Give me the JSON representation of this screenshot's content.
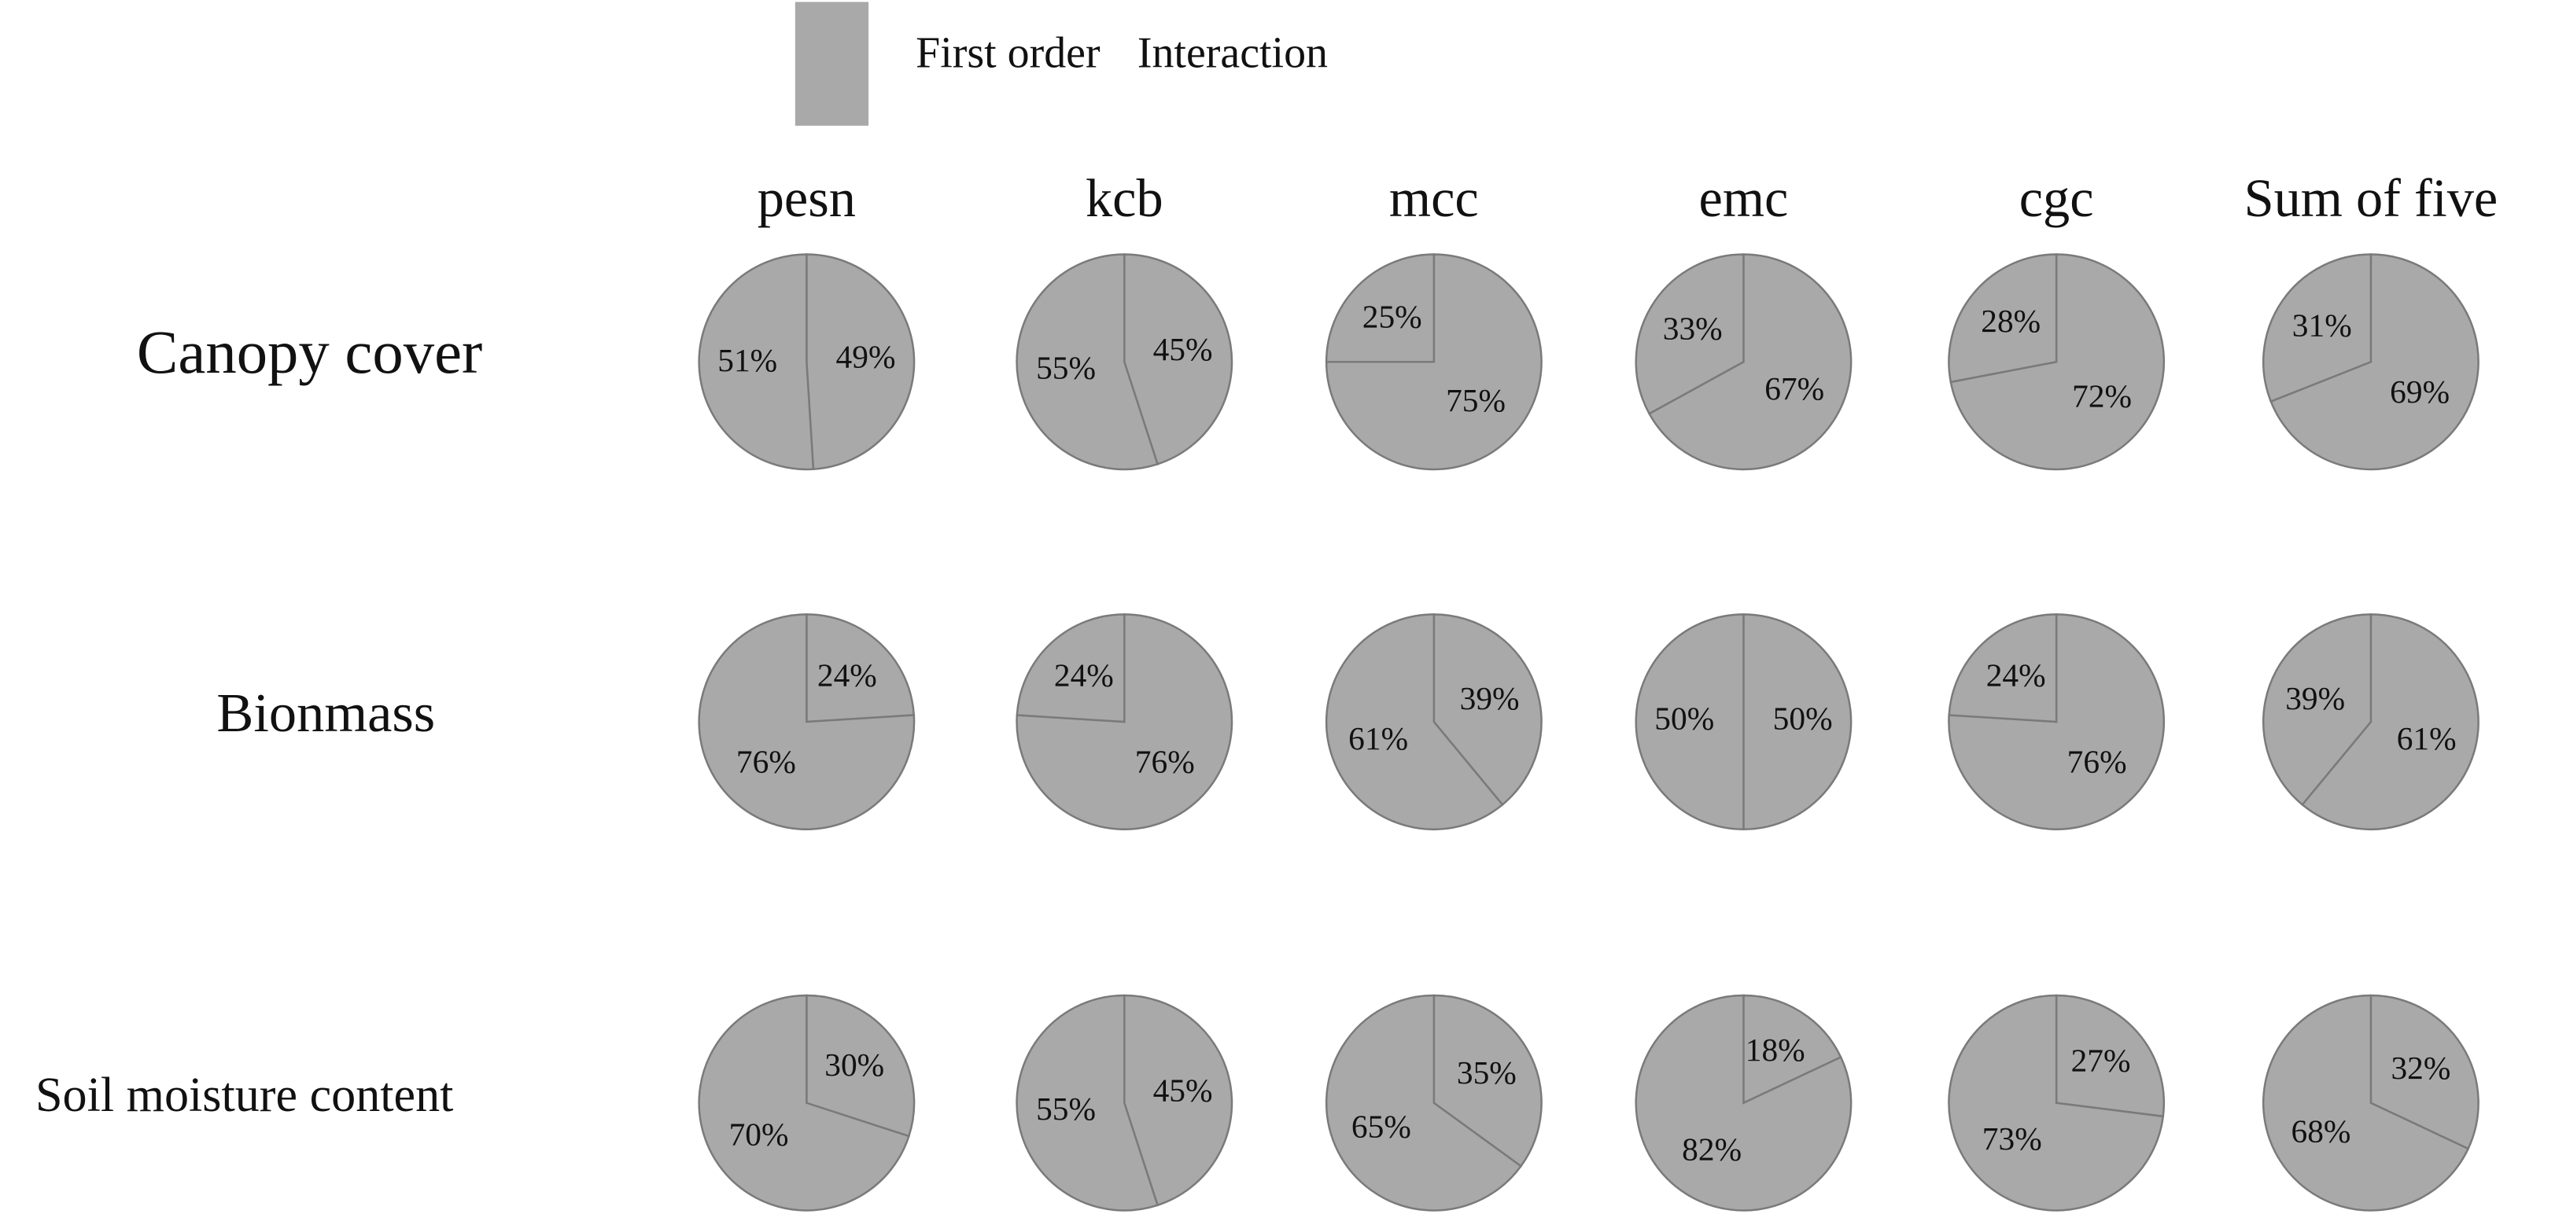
{
  "legend": {
    "labels": [
      "First order",
      "Interaction"
    ],
    "color": "#a9a9a9"
  },
  "columns": [
    "pesn",
    "kcb",
    "mcc",
    "emc",
    "cgc",
    "Sum of five"
  ],
  "rows": [
    "Canopy cover",
    "Bionmass",
    "Soil moisture content"
  ],
  "chart_data": [
    {
      "type": "pie",
      "values": [
        49,
        51
      ],
      "value_labels": [
        "49%",
        "51%"
      ]
    },
    {
      "type": "pie",
      "values": [
        45,
        55
      ],
      "value_labels": [
        "45%",
        "55%"
      ]
    },
    {
      "type": "pie",
      "values": [
        75,
        25
      ],
      "value_labels": [
        "75%",
        "25%"
      ]
    },
    {
      "type": "pie",
      "values": [
        67,
        33
      ],
      "value_labels": [
        "67%",
        "33%"
      ]
    },
    {
      "type": "pie",
      "values": [
        72,
        28
      ],
      "value_labels": [
        "72%",
        "28%"
      ]
    },
    {
      "type": "pie",
      "values": [
        69,
        31
      ],
      "value_labels": [
        "69%",
        "31%"
      ]
    },
    {
      "type": "pie",
      "values": [
        24,
        76
      ],
      "value_labels": [
        "24%",
        "76%"
      ]
    },
    {
      "type": "pie",
      "values": [
        76,
        24
      ],
      "value_labels": [
        "76%",
        "24%"
      ]
    },
    {
      "type": "pie",
      "values": [
        39,
        61
      ],
      "value_labels": [
        "39%",
        "61%"
      ]
    },
    {
      "type": "pie",
      "values": [
        50,
        50
      ],
      "value_labels": [
        "50%",
        "50%"
      ]
    },
    {
      "type": "pie",
      "values": [
        76,
        24
      ],
      "value_labels": [
        "76%",
        "24%"
      ]
    },
    {
      "type": "pie",
      "values": [
        61,
        39
      ],
      "value_labels": [
        "61%",
        "39%"
      ]
    },
    {
      "type": "pie",
      "values": [
        30,
        70
      ],
      "value_labels": [
        "30%",
        "70%"
      ]
    },
    {
      "type": "pie",
      "values": [
        45,
        55
      ],
      "value_labels": [
        "45%",
        "55%"
      ]
    },
    {
      "type": "pie",
      "values": [
        35,
        65
      ],
      "value_labels": [
        "35%",
        "65%"
      ]
    },
    {
      "type": "pie",
      "values": [
        18,
        82
      ],
      "value_labels": [
        "18%",
        "82%"
      ]
    },
    {
      "type": "pie",
      "values": [
        27,
        73
      ],
      "value_labels": [
        "27%",
        "73%"
      ]
    },
    {
      "type": "pie",
      "values": [
        32,
        68
      ],
      "value_labels": [
        "32%",
        "68%"
      ]
    }
  ]
}
